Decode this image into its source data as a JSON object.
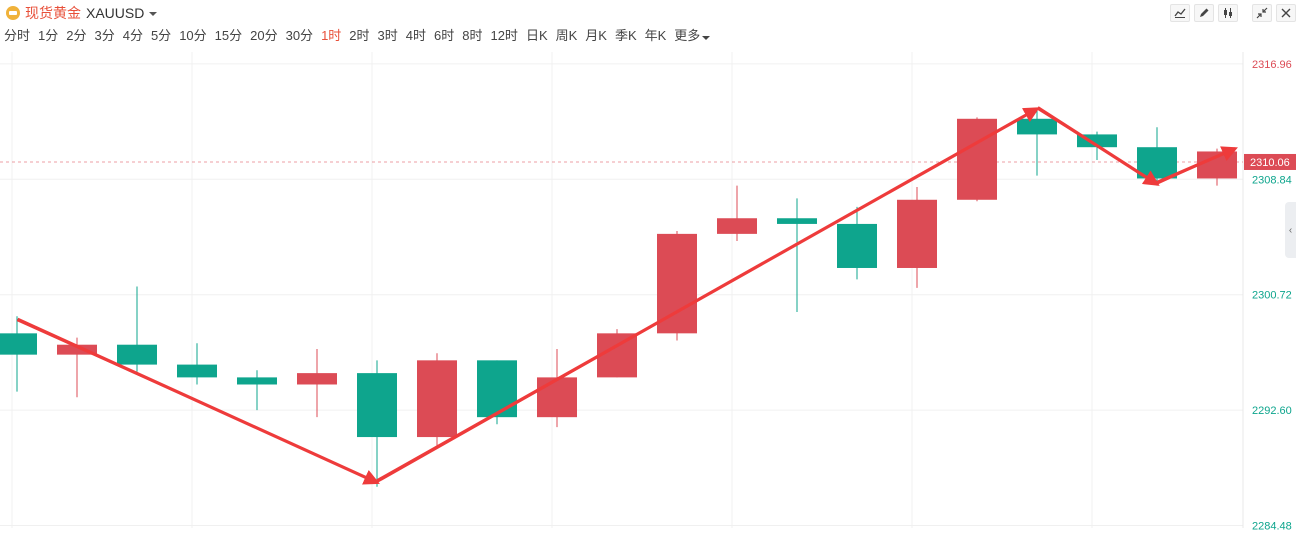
{
  "header": {
    "name": "现货黄金",
    "code": "XAUUSD",
    "icons": [
      "line-chart-icon",
      "pencil-icon",
      "candles-icon",
      "collapse-icon",
      "close-icon"
    ]
  },
  "intervals": {
    "items": [
      "分时",
      "1分",
      "2分",
      "3分",
      "4分",
      "5分",
      "10分",
      "15分",
      "20分",
      "30分",
      "1时",
      "2时",
      "3时",
      "4时",
      "6时",
      "8时",
      "12时",
      "日K",
      "周K",
      "月K",
      "季K",
      "年K"
    ],
    "more": "更多",
    "active": "1时"
  },
  "colors": {
    "up": "#dc4b55",
    "down": "#0ea58d",
    "arrow": "#ee3b3b",
    "grid": "#f0f0f0",
    "current": "#dc4b55"
  },
  "chart_data": {
    "type": "candlestick",
    "y_ticks": [
      2316.96,
      2308.84,
      2300.72,
      2292.6,
      2284.48
    ],
    "y_tick_labels": [
      "2316.96",
      "2308.84",
      "2300.72",
      "2292.60",
      "2284.48"
    ],
    "ylim": [
      2284.3,
      2317.8
    ],
    "current_price": 2310.06,
    "current_price_label": "2310.06",
    "candles": [
      {
        "open": 2298.0,
        "close": 2296.5,
        "high": 2299.2,
        "low": 2293.9
      },
      {
        "open": 2296.5,
        "close": 2297.2,
        "high": 2297.7,
        "low": 2293.5
      },
      {
        "open": 2297.2,
        "close": 2295.8,
        "high": 2301.3,
        "low": 2295.3
      },
      {
        "open": 2295.8,
        "close": 2294.9,
        "high": 2297.3,
        "low": 2294.4
      },
      {
        "open": 2294.9,
        "close": 2294.4,
        "high": 2295.4,
        "low": 2292.6
      },
      {
        "open": 2294.4,
        "close": 2295.2,
        "high": 2296.9,
        "low": 2292.1
      },
      {
        "open": 2295.2,
        "close": 2290.7,
        "high": 2296.1,
        "low": 2287.2
      },
      {
        "open": 2290.7,
        "close": 2296.1,
        "high": 2296.6,
        "low": 2290.0
      },
      {
        "open": 2296.1,
        "close": 2292.1,
        "high": 2296.1,
        "low": 2291.6
      },
      {
        "open": 2292.1,
        "close": 2294.9,
        "high": 2296.9,
        "low": 2291.4
      },
      {
        "open": 2294.9,
        "close": 2298.0,
        "high": 2298.3,
        "low": 2294.9
      },
      {
        "open": 2298.0,
        "close": 2305.0,
        "high": 2305.2,
        "low": 2297.5
      },
      {
        "open": 2305.0,
        "close": 2306.1,
        "high": 2308.4,
        "low": 2304.5
      },
      {
        "open": 2306.1,
        "close": 2305.7,
        "high": 2307.5,
        "low": 2299.5
      },
      {
        "open": 2305.7,
        "close": 2302.6,
        "high": 2306.9,
        "low": 2301.8
      },
      {
        "open": 2302.6,
        "close": 2307.4,
        "high": 2308.3,
        "low": 2301.2
      },
      {
        "open": 2307.4,
        "close": 2313.1,
        "high": 2313.2,
        "low": 2307.3
      },
      {
        "open": 2313.1,
        "close": 2312.0,
        "high": 2313.8,
        "low": 2309.1
      },
      {
        "open": 2312.0,
        "close": 2311.1,
        "high": 2312.2,
        "low": 2310.2
      },
      {
        "open": 2311.1,
        "close": 2308.9,
        "high": 2312.5,
        "low": 2308.4
      },
      {
        "open": 2308.9,
        "close": 2310.8,
        "high": 2311.0,
        "low": 2308.4
      }
    ],
    "trend_arrows": [
      {
        "from": [
          0,
          2298.9
        ],
        "to": [
          6,
          2287.5
        ]
      },
      {
        "from": [
          6,
          2287.5
        ],
        "to": [
          17,
          2313.8
        ]
      },
      {
        "from": [
          17,
          2313.8
        ],
        "to": [
          19,
          2308.5
        ]
      },
      {
        "from": [
          19,
          2308.5
        ],
        "to": [
          20.3,
          2311.0
        ]
      }
    ]
  }
}
